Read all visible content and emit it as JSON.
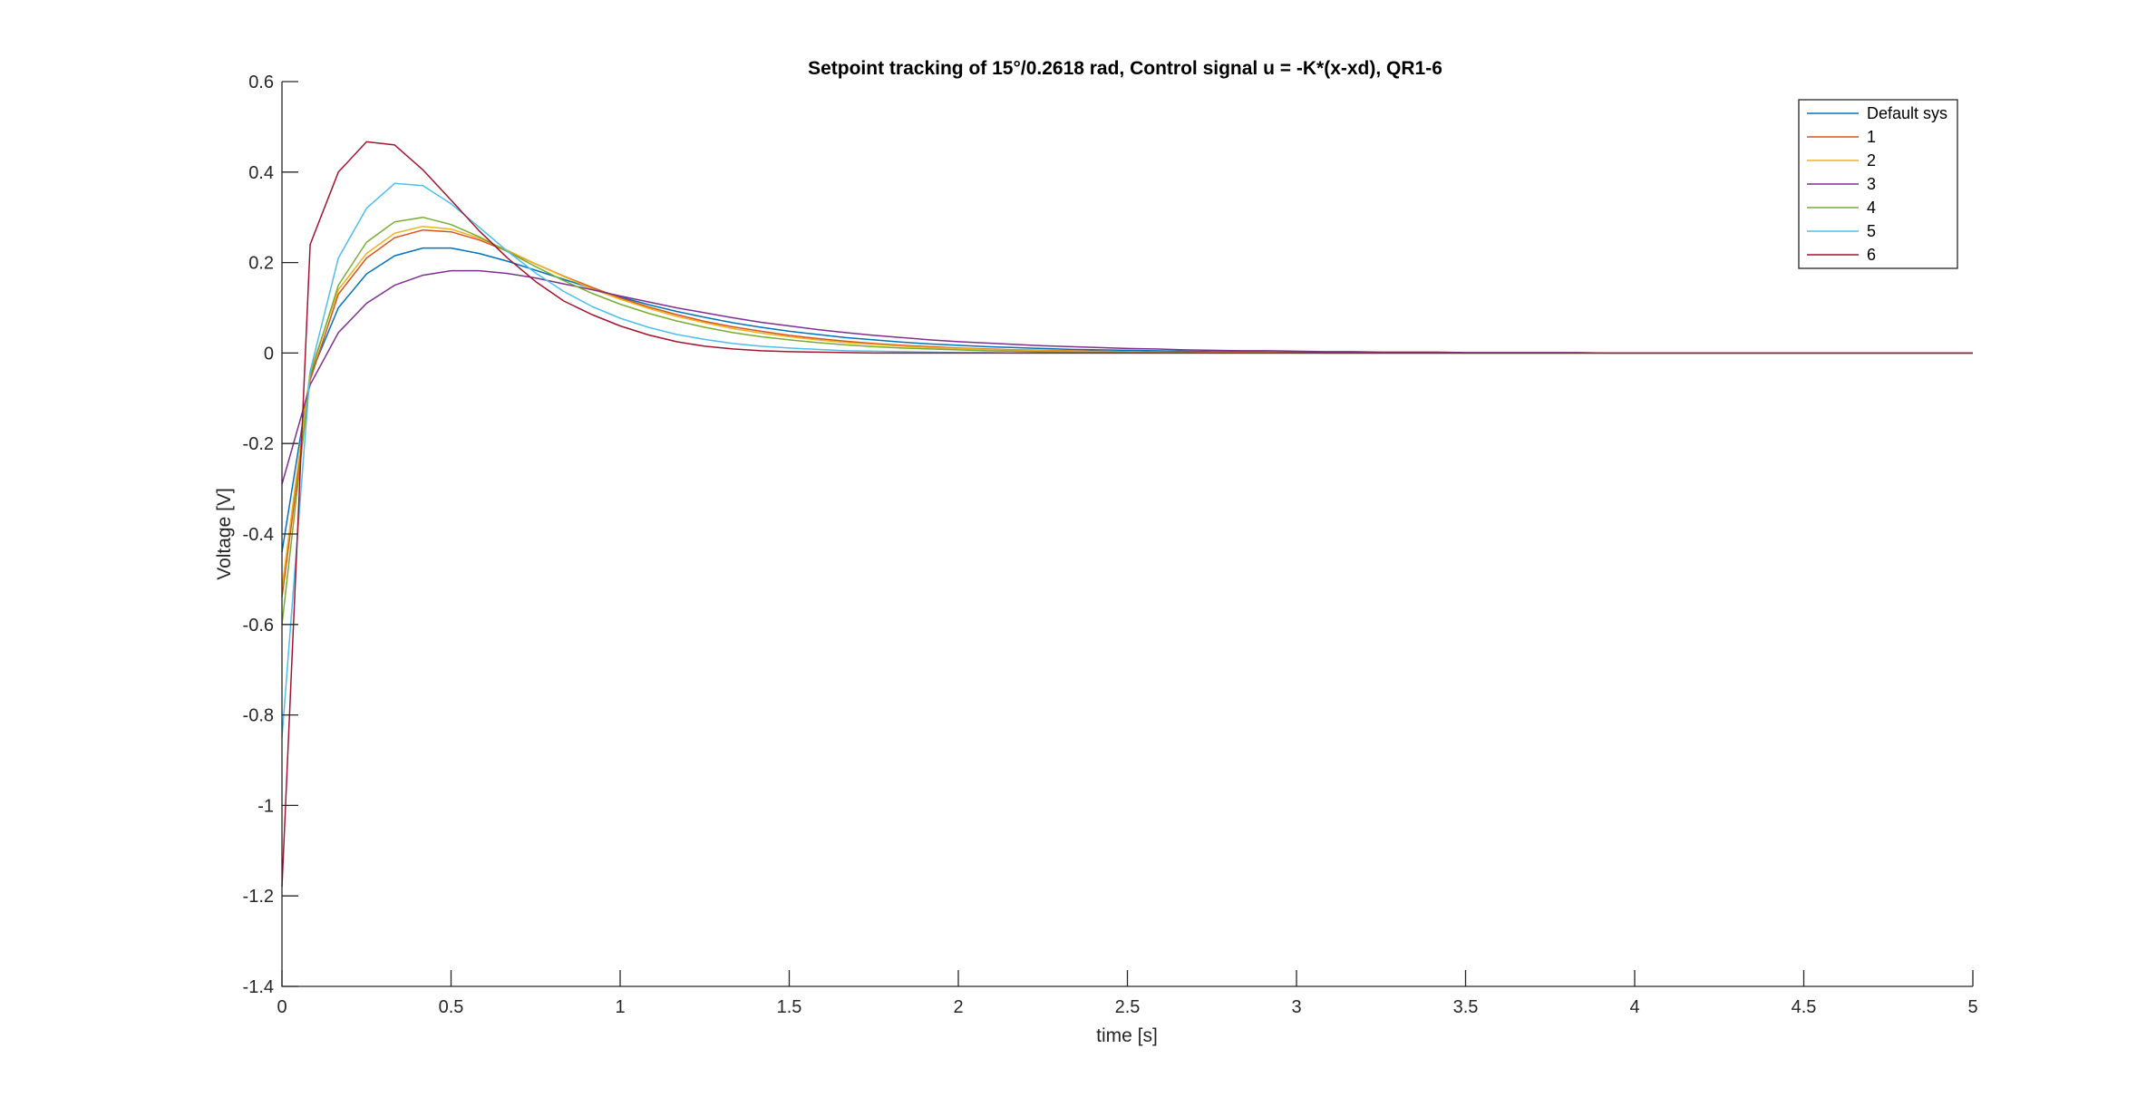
{
  "chart_data": {
    "type": "line",
    "title": "Setpoint tracking of 15°/0.2618 rad, Control signal u = -K*(x-xd), QR1-6",
    "xlabel": "time [s]",
    "ylabel": "Voltage [V]",
    "xlim": [
      0,
      5
    ],
    "ylim": [
      -1.4,
      0.6
    ],
    "xticks": [
      0,
      0.5,
      1,
      1.5,
      2,
      2.5,
      3,
      3.5,
      4,
      4.5,
      5
    ],
    "xtick_labels": [
      "0",
      "0.5",
      "1",
      "1.5",
      "2",
      "2.5",
      "3",
      "3.5",
      "4",
      "4.5",
      "5"
    ],
    "yticks": [
      -1.4,
      -1.2,
      -1,
      -0.8,
      -0.6,
      -0.4,
      -0.2,
      0,
      0.2,
      0.4,
      0.6
    ],
    "ytick_labels": [
      "-1.4",
      "-1.2",
      "-1",
      "-0.8",
      "-0.6",
      "-0.4",
      "-0.2",
      "0",
      "0.2",
      "0.4",
      "0.6"
    ],
    "grid": false,
    "legend_position": "top-right",
    "x": [
      0,
      0.0833,
      0.1667,
      0.25,
      0.3333,
      0.4167,
      0.5,
      0.5833,
      0.6667,
      0.75,
      0.8333,
      0.9167,
      1.0,
      1.0833,
      1.1667,
      1.25,
      1.3333,
      1.4167,
      1.5,
      1.5833,
      1.6667,
      1.75,
      1.8333,
      1.9167,
      2.0,
      2.0833,
      2.1667,
      2.25,
      2.3333,
      2.4167,
      2.5,
      2.5833,
      2.6667,
      2.75,
      2.8333,
      2.9167,
      3.0,
      3.0833,
      3.1667,
      3.25,
      3.3333,
      3.4167,
      3.5,
      3.5833,
      3.6667,
      3.75,
      3.8333,
      3.9167,
      4.0,
      4.0833,
      4.1667,
      4.25,
      4.3333,
      4.4167,
      4.5,
      4.5833,
      4.6667,
      4.75,
      4.8333,
      4.9167,
      5.0
    ],
    "series": [
      {
        "name": "Default sys",
        "color": "#0072BD",
        "values": [
          -0.44,
          -0.05,
          0.1,
          0.175,
          0.215,
          0.232,
          0.232,
          0.22,
          0.203,
          0.183,
          0.163,
          0.143,
          0.124,
          0.107,
          0.092,
          0.079,
          0.067,
          0.057,
          0.048,
          0.041,
          0.034,
          0.029,
          0.024,
          0.02,
          0.017,
          0.014,
          0.012,
          0.01,
          0.008,
          0.007,
          0.006,
          0.005,
          0.004,
          0.003,
          0.003,
          0.002,
          0.002,
          0.001,
          0.001,
          0.001,
          0.001,
          0,
          0,
          0,
          0,
          0,
          0,
          0,
          0,
          0,
          0,
          0,
          0,
          0,
          0,
          0,
          0,
          0,
          0,
          0,
          0
        ]
      },
      {
        "name": "1",
        "color": "#D95319",
        "values": [
          -0.54,
          -0.06,
          0.13,
          0.21,
          0.255,
          0.272,
          0.268,
          0.25,
          0.225,
          0.197,
          0.17,
          0.145,
          0.122,
          0.102,
          0.085,
          0.07,
          0.058,
          0.048,
          0.039,
          0.032,
          0.026,
          0.021,
          0.017,
          0.014,
          0.011,
          0.009,
          0.007,
          0.006,
          0.005,
          0.004,
          0.003,
          0.002,
          0.002,
          0.001,
          0.001,
          0.001,
          0.001,
          0,
          0,
          0,
          0,
          0,
          0,
          0,
          0,
          0,
          0,
          0,
          0,
          0,
          0,
          0,
          0,
          0,
          0,
          0,
          0,
          0,
          0,
          0,
          0
        ]
      },
      {
        "name": "2",
        "color": "#EDB120",
        "values": [
          -0.52,
          -0.04,
          0.14,
          0.22,
          0.265,
          0.28,
          0.274,
          0.254,
          0.227,
          0.197,
          0.169,
          0.142,
          0.119,
          0.099,
          0.081,
          0.067,
          0.054,
          0.044,
          0.036,
          0.029,
          0.023,
          0.019,
          0.015,
          0.012,
          0.01,
          0.008,
          0.006,
          0.005,
          0.004,
          0.003,
          0.002,
          0.002,
          0.001,
          0.001,
          0.001,
          0.001,
          0,
          0,
          0,
          0,
          0,
          0,
          0,
          0,
          0,
          0,
          0,
          0,
          0,
          0,
          0,
          0,
          0,
          0,
          0,
          0,
          0,
          0,
          0,
          0,
          0
        ]
      },
      {
        "name": "3",
        "color": "#7E2F8E",
        "values": [
          -0.29,
          -0.07,
          0.045,
          0.11,
          0.15,
          0.172,
          0.182,
          0.182,
          0.176,
          0.166,
          0.153,
          0.14,
          0.126,
          0.113,
          0.1,
          0.089,
          0.078,
          0.068,
          0.06,
          0.052,
          0.045,
          0.039,
          0.034,
          0.029,
          0.025,
          0.022,
          0.019,
          0.016,
          0.014,
          0.012,
          0.01,
          0.009,
          0.007,
          0.006,
          0.005,
          0.005,
          0.004,
          0.003,
          0.003,
          0.002,
          0.002,
          0.002,
          0.001,
          0.001,
          0.001,
          0.001,
          0.001,
          0,
          0,
          0,
          0,
          0,
          0,
          0,
          0,
          0,
          0,
          0,
          0,
          0,
          0
        ]
      },
      {
        "name": "4",
        "color": "#77AC30",
        "values": [
          -0.6,
          -0.05,
          0.15,
          0.245,
          0.29,
          0.3,
          0.284,
          0.257,
          0.224,
          0.191,
          0.16,
          0.132,
          0.108,
          0.088,
          0.071,
          0.057,
          0.045,
          0.036,
          0.029,
          0.023,
          0.018,
          0.014,
          0.011,
          0.009,
          0.007,
          0.005,
          0.004,
          0.003,
          0.002,
          0.002,
          0.001,
          0.001,
          0.001,
          0,
          0,
          0,
          0,
          0,
          0,
          0,
          0,
          0,
          0,
          0,
          0,
          0,
          0,
          0,
          0,
          0,
          0,
          0,
          0,
          0,
          0,
          0,
          0,
          0,
          0,
          0,
          0
        ]
      },
      {
        "name": "5",
        "color": "#4DBEEE",
        "values": [
          -0.85,
          -0.04,
          0.21,
          0.32,
          0.375,
          0.37,
          0.33,
          0.278,
          0.225,
          0.177,
          0.136,
          0.103,
          0.077,
          0.057,
          0.041,
          0.03,
          0.021,
          0.015,
          0.011,
          0.008,
          0.005,
          0.004,
          0.003,
          0.002,
          0.001,
          0.001,
          0,
          0,
          0,
          0,
          0,
          0,
          0,
          0,
          0,
          0,
          0,
          0,
          0,
          0,
          0,
          0,
          0,
          0,
          0,
          0,
          0,
          0,
          0,
          0,
          0,
          0,
          0,
          0,
          0,
          0,
          0,
          0,
          0,
          0,
          0
        ]
      },
      {
        "name": "6",
        "color": "#A2142F",
        "values": [
          -1.18,
          0.24,
          0.4,
          0.467,
          0.46,
          0.405,
          0.338,
          0.27,
          0.21,
          0.158,
          0.115,
          0.085,
          0.06,
          0.04,
          0.025,
          0.015,
          0.009,
          0.005,
          0.003,
          0.002,
          0.001,
          0,
          0,
          0,
          0,
          0,
          0,
          0,
          0,
          0,
          0,
          0,
          0,
          0,
          0,
          0,
          0,
          0,
          0,
          0,
          0,
          0,
          0,
          0,
          0,
          0,
          0,
          0,
          0,
          0,
          0,
          0,
          0,
          0,
          0,
          0,
          0,
          0,
          0,
          0,
          0
        ]
      }
    ]
  }
}
